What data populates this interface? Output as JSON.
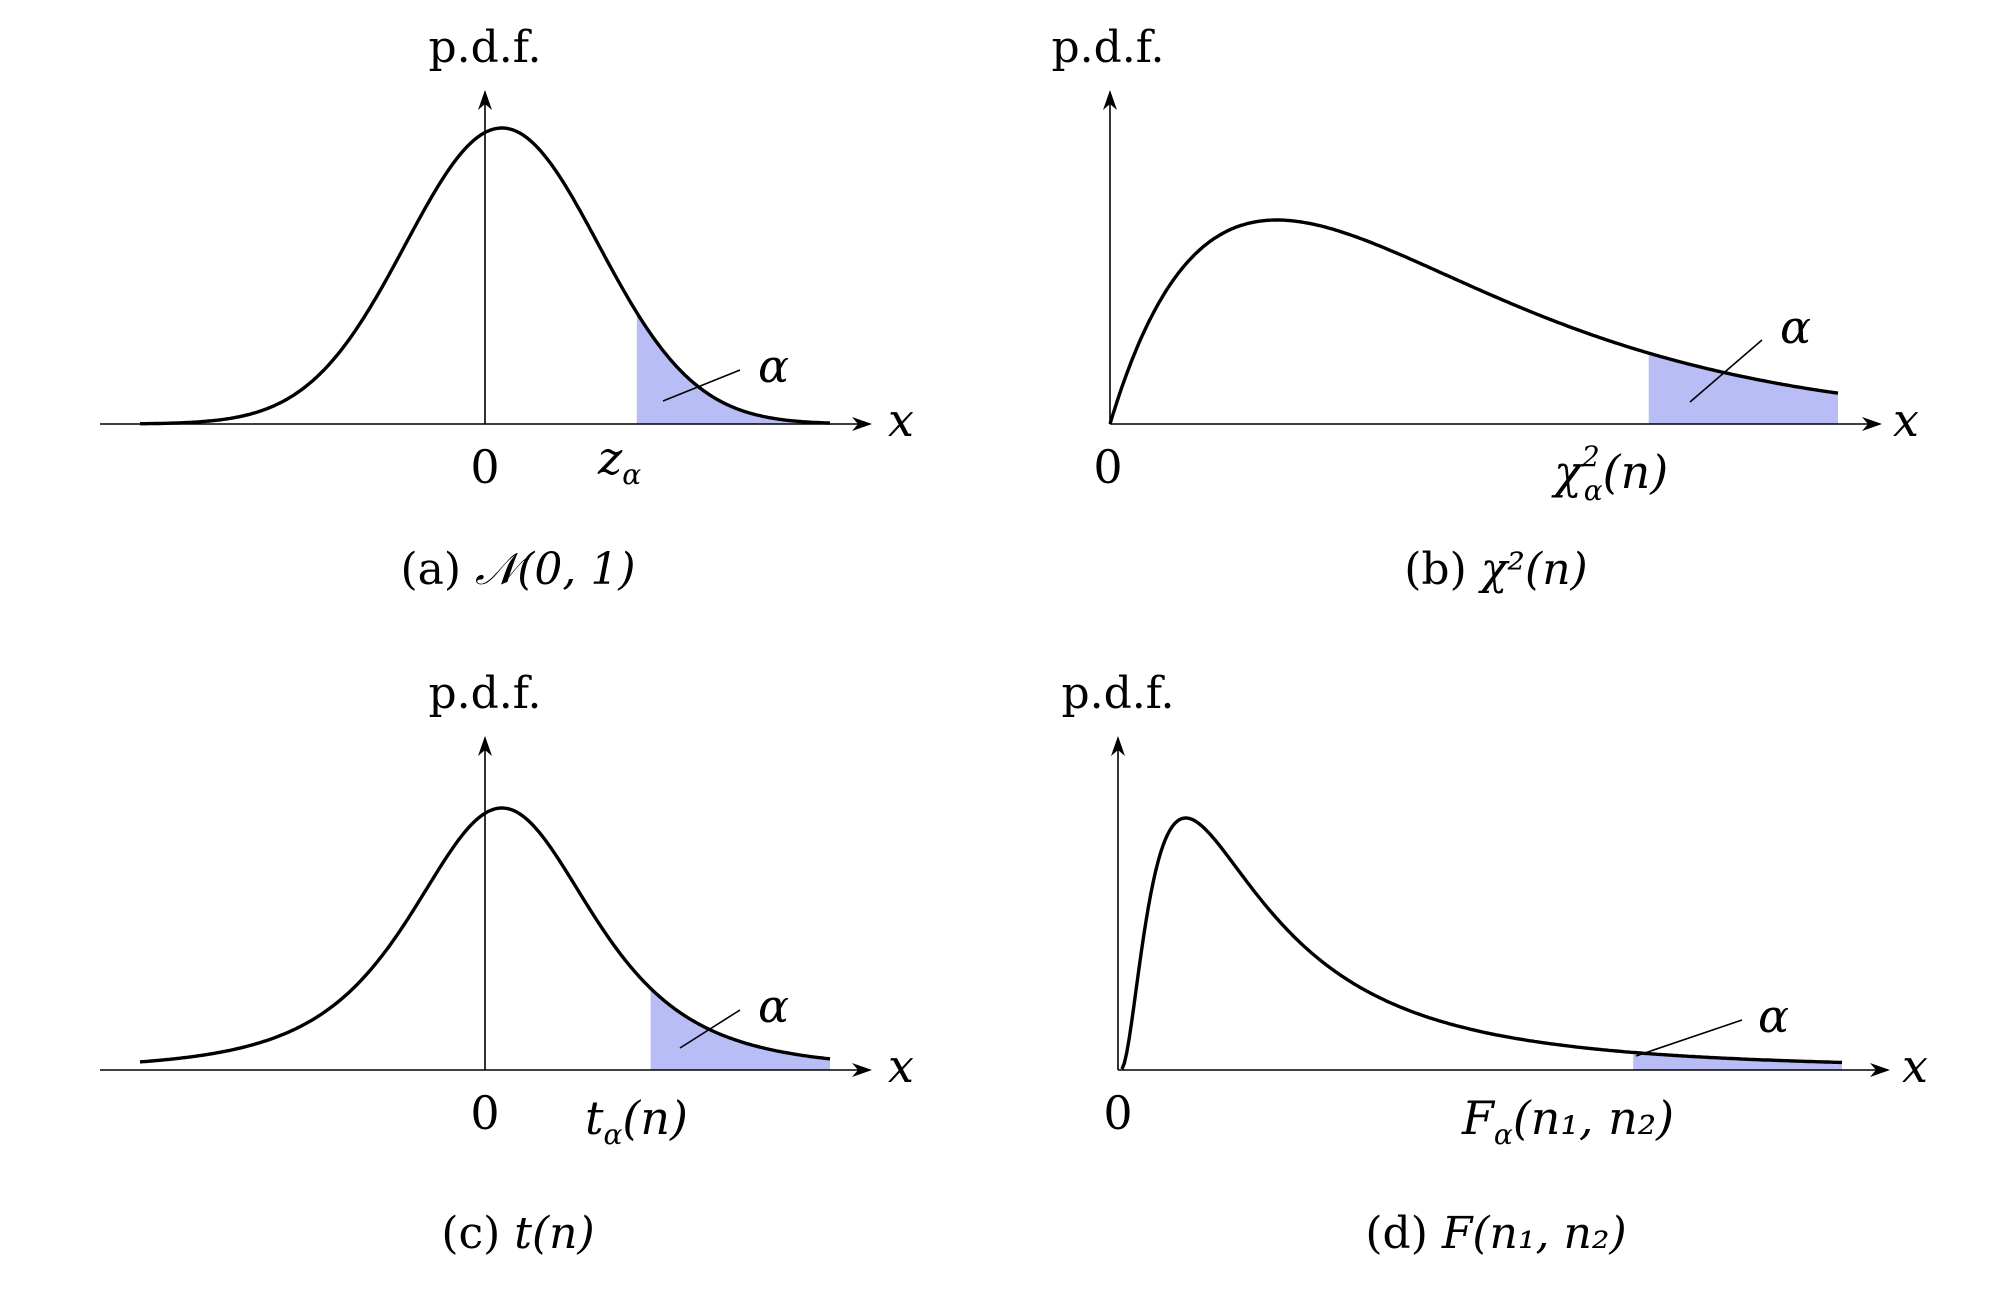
{
  "panels": [
    {
      "id": "a",
      "ylabel": "p.d.f.",
      "xlabel": "x",
      "origin_label": "0",
      "crit_label_main": "z",
      "crit_label_sub": "α",
      "crit_label_rest": "",
      "area_label": "α",
      "caption_prefix": "(a) ",
      "caption_math": "𝒩(0, 1)",
      "fill_color": "#b9bdf5"
    },
    {
      "id": "b",
      "ylabel": "p.d.f.",
      "xlabel": "x",
      "origin_label": "0",
      "crit_label_main": "χ",
      "crit_label_sup": "2",
      "crit_label_sub": "α",
      "crit_label_rest": "(n)",
      "area_label": "α",
      "caption_prefix": "(b) ",
      "caption_math": "χ²(n)",
      "fill_color": "#b9bdf5"
    },
    {
      "id": "c",
      "ylabel": "p.d.f.",
      "xlabel": "x",
      "origin_label": "0",
      "crit_label_main": "t",
      "crit_label_sub": "α",
      "crit_label_rest": "(n)",
      "area_label": "α",
      "caption_prefix": "(c) ",
      "caption_math": "t(n)",
      "fill_color": "#b9bdf5"
    },
    {
      "id": "d",
      "ylabel": "p.d.f.",
      "xlabel": "x",
      "origin_label": "0",
      "crit_label_main": "F",
      "crit_label_sub": "α",
      "crit_label_rest": "(n₁, n₂)",
      "area_label": "α",
      "caption_prefix": "(d) ",
      "caption_math": "F(n₁, n₂)",
      "fill_color": "#b9bdf5"
    }
  ]
}
